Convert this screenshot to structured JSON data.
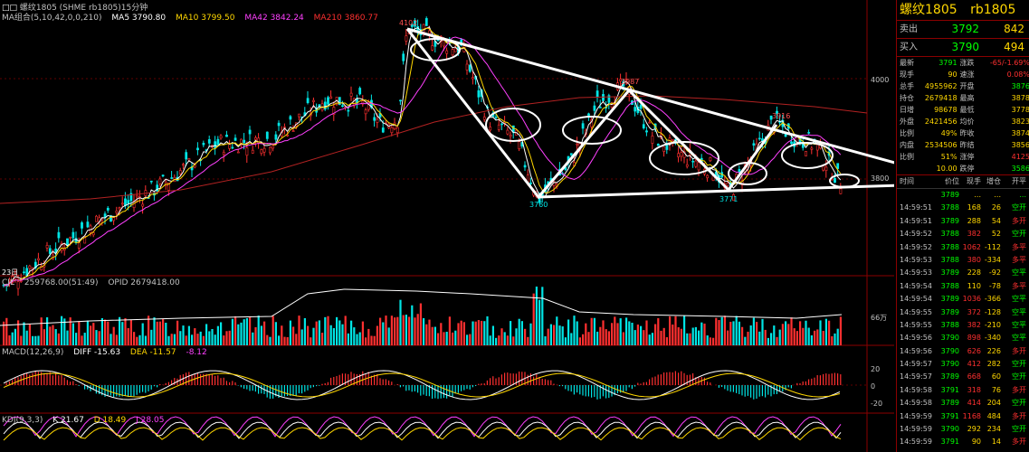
{
  "chart": {
    "header": "螺纹1805 (SHME rb1805)15分钟",
    "ma_label": "MA组合(5,10,42,0,0,210)",
    "ma5": "MA5 3790.80",
    "ma10": "MA10 3799.50",
    "ma42": "MA42 3842.24",
    "ma210": "MA210 3860.77",
    "price_axis": [
      "4000",
      "3800"
    ],
    "annotations": [
      "4102",
      "3987",
      "3916",
      "3760",
      "3771"
    ],
    "corner_text": "23日",
    "vol_header": "CJL",
    "vol_value": "259768.00(51:49)",
    "opid_value": "OPID 2679418.00",
    "vol_axis": "66万",
    "macd_header": "MACD(12,26,9)",
    "macd_diff": "DIFF -15.63",
    "macd_dea": "DEA -11.57",
    "macd_m": "-8.12",
    "macd_axis": [
      "20",
      "0",
      "-20"
    ],
    "kdj_header": "KDJ(9,3,3)",
    "kdj_k": "K 21.67",
    "kdj_d": "D 18.49",
    "kdj_j": "J 28.05",
    "colors": {
      "up": "#ff3030",
      "down": "#00e5e5",
      "ma5": "#ffffff",
      "ma10": "#ffd700",
      "ma42": "#ff40ff",
      "ma210": "#b22222"
    }
  },
  "panel": {
    "title_name": "螺纹1805",
    "title_code": "rb1805",
    "ask_label": "卖出",
    "ask_price": "3792",
    "ask_vol": "842",
    "bid_label": "买入",
    "bid_price": "3790",
    "bid_vol": "494",
    "stats": [
      {
        "l1": "最新",
        "v1": "3791",
        "l2": "涨跌",
        "v2": "-65/-1.69%"
      },
      {
        "l1": "现手",
        "v1": "90",
        "l2": "速涨",
        "v2": "0.08%"
      },
      {
        "l1": "总手",
        "v1": "4955962",
        "l2": "开盘",
        "v2": "3876"
      },
      {
        "l1": "持仓",
        "v1": "2679418",
        "l2": "最高",
        "v2": "3878"
      },
      {
        "l1": "日增",
        "v1": "98678",
        "l2": "最低",
        "v2": "3778"
      },
      {
        "l1": "外盘",
        "v1": "2421456",
        "l2": "均价",
        "v2": "3823"
      },
      {
        "l1": "比例",
        "v1": "49%",
        "l2": "昨收",
        "v2": "3874"
      },
      {
        "l1": "内盘",
        "v1": "2534506",
        "l2": "昨结",
        "v2": "3856"
      },
      {
        "l1": "比例",
        "v1": "51%",
        "l2": "涨停",
        "v2": "4125"
      },
      {
        "l1": "",
        "v1": "10.00",
        "l2": "跌停",
        "v2": "3586"
      }
    ],
    "trade_headers": [
      "时间",
      "价位",
      "现手",
      "增仓",
      "开平"
    ],
    "trades": [
      {
        "t": "",
        "p": "3789",
        "v": "...",
        "c": "...",
        "k": "..."
      },
      {
        "t": "14:59:51",
        "p": "3788",
        "v": "168",
        "c": "26",
        "k": "空开"
      },
      {
        "t": "14:59:51",
        "p": "3789",
        "v": "288",
        "c": "54",
        "k": "多开"
      },
      {
        "t": "14:59:52",
        "p": "3788",
        "v": "382",
        "c": "52",
        "k": "空开"
      },
      {
        "t": "14:59:52",
        "p": "3788",
        "v": "1062",
        "c": "-112",
        "k": "多平"
      },
      {
        "t": "14:59:53",
        "p": "3788",
        "v": "380",
        "c": "-334",
        "k": "多平"
      },
      {
        "t": "14:59:53",
        "p": "3789",
        "v": "228",
        "c": "-92",
        "k": "空平"
      },
      {
        "t": "14:59:54",
        "p": "3788",
        "v": "110",
        "c": "-78",
        "k": "多平"
      },
      {
        "t": "14:59:54",
        "p": "3789",
        "v": "1036",
        "c": "-366",
        "k": "空平"
      },
      {
        "t": "14:59:55",
        "p": "3789",
        "v": "372",
        "c": "-128",
        "k": "空平"
      },
      {
        "t": "14:59:55",
        "p": "3788",
        "v": "382",
        "c": "-210",
        "k": "空平"
      },
      {
        "t": "14:59:56",
        "p": "3790",
        "v": "898",
        "c": "-340",
        "k": "空平"
      },
      {
        "t": "14:59:56",
        "p": "3790",
        "v": "626",
        "c": "226",
        "k": "多开"
      },
      {
        "t": "14:59:57",
        "p": "3790",
        "v": "412",
        "c": "282",
        "k": "空开"
      },
      {
        "t": "14:59:57",
        "p": "3789",
        "v": "668",
        "c": "60",
        "k": "空开"
      },
      {
        "t": "14:59:58",
        "p": "3791",
        "v": "318",
        "c": "76",
        "k": "多开"
      },
      {
        "t": "14:59:58",
        "p": "3789",
        "v": "414",
        "c": "204",
        "k": "空开"
      },
      {
        "t": "14:59:59",
        "p": "3791",
        "v": "1168",
        "c": "484",
        "k": "多开"
      },
      {
        "t": "14:59:59",
        "p": "3790",
        "v": "292",
        "c": "234",
        "k": "空开"
      },
      {
        "t": "14:59:59",
        "p": "3791",
        "v": "90",
        "c": "14",
        "k": "多开"
      }
    ]
  }
}
